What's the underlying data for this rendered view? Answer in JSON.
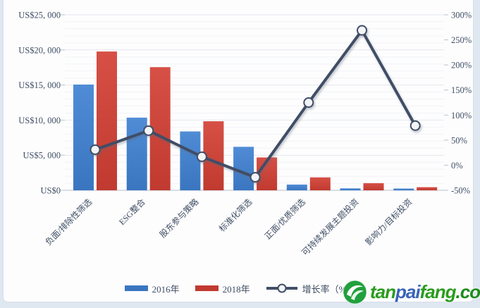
{
  "chart_data": {
    "type": "combo-bar-line",
    "title": "",
    "categories": [
      "负面/排除性筛选",
      "ESG整合",
      "股东参与策略",
      "标准化筛选",
      "正面/优质筛选",
      "可持续发展主题投资",
      "影响力/目标投资"
    ],
    "series": [
      {
        "name": "2016年",
        "type": "bar",
        "axis": "left",
        "color": "#3a76c0",
        "values": [
          15064,
          10353,
          8385,
          6195,
          818,
          276,
          248
        ]
      },
      {
        "name": "2018年",
        "type": "bar",
        "axis": "left",
        "color": "#c03a30",
        "values": [
          19771,
          17544,
          9835,
          4679,
          1842,
          1018,
          444
        ]
      },
      {
        "name": "增长率（%）",
        "type": "line",
        "axis": "right",
        "color": "#414e66",
        "marker_fill": "#f2f4f6",
        "values": [
          31,
          69,
          17,
          -24,
          125,
          269,
          79
        ]
      }
    ],
    "left_axis": {
      "min": 0,
      "max": 25000,
      "major_step": 5000,
      "minor_step": 1000,
      "tick_labels": [
        "US$0",
        "US$5, 000",
        "US$10, 000",
        "US$15, 000",
        "US$20, 000",
        "US$25, 000"
      ]
    },
    "right_axis": {
      "min": -50,
      "max": 300,
      "step": 50,
      "tick_labels": [
        "-50%",
        "0%",
        "50%",
        "100%",
        "150%",
        "200%",
        "250%",
        "300%"
      ]
    },
    "grid": true,
    "legend_position": "bottom"
  },
  "legend": {
    "items": [
      {
        "label": "2016年",
        "swatch": "bar",
        "color": "#3a76c0"
      },
      {
        "label": "2018年",
        "swatch": "bar",
        "color": "#c03a30"
      },
      {
        "label": "增长率（%）",
        "swatch": "line",
        "color": "#414e66"
      }
    ]
  },
  "watermark": {
    "icon": "tanpaifang-leaf-globe",
    "icon_color": "#21a03d",
    "site_parts": [
      {
        "text": "tan",
        "color": "#2a9c1e"
      },
      {
        "text": "pai",
        "color": "#3a62b8"
      },
      {
        "text": "fang",
        "color": "#2a9c1e"
      },
      {
        "text": ".com",
        "color": "#1d8a1d"
      }
    ]
  }
}
